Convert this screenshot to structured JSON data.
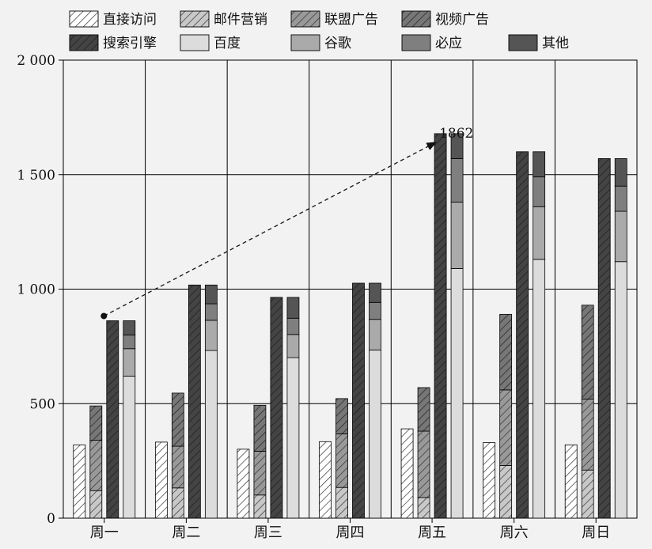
{
  "chart_data": {
    "type": "bar",
    "categories": [
      "周一",
      "周二",
      "周三",
      "周四",
      "周五",
      "周六",
      "周日"
    ],
    "ylim": [
      0,
      2000
    ],
    "yticks": [
      0,
      500,
      1000,
      1500,
      2000
    ],
    "ytick_labels": [
      "0",
      "500",
      "1 000",
      "1 500",
      "2 000"
    ],
    "grid": true,
    "legend_position": "top",
    "groups": [
      {
        "id": "direct",
        "series": [
          {
            "name": "直接访问",
            "values": [
              320,
              332,
              301,
              334,
              390,
              330,
              320
            ],
            "color": "#ffffff",
            "pattern": "hatch-light"
          }
        ]
      },
      {
        "id": "ads",
        "series": [
          {
            "name": "邮件营销",
            "values": [
              120,
              132,
              101,
              134,
              90,
              230,
              210
            ],
            "color": "#c8c8c8",
            "pattern": "hatch-medium"
          },
          {
            "name": "联盟广告",
            "values": [
              220,
              182,
              191,
              234,
              290,
              330,
              310
            ],
            "color": "#999999",
            "pattern": "hatch-medium"
          },
          {
            "name": "视频广告",
            "values": [
              150,
              232,
              201,
              154,
              190,
              330,
              410
            ],
            "color": "#777777",
            "pattern": "hatch-dark"
          }
        ]
      },
      {
        "id": "search-total",
        "series": [
          {
            "name": "搜索引擎",
            "values": [
              862,
              1018,
              964,
              1026,
              1679,
              1600,
              1570
            ],
            "color": "#444444",
            "pattern": "hatch-darkest"
          }
        ]
      },
      {
        "id": "search-engines",
        "series": [
          {
            "name": "百度",
            "values": [
              620,
              732,
              701,
              734,
              1090,
              1130,
              1120
            ],
            "color": "#dcdcdc",
            "pattern": "solid"
          },
          {
            "name": "谷歌",
            "values": [
              120,
              132,
              101,
              134,
              290,
              230,
              220
            ],
            "color": "#aaaaaa",
            "pattern": "solid"
          },
          {
            "name": "必应",
            "values": [
              60,
              72,
              71,
              74,
              190,
              130,
              110
            ],
            "color": "#7f7f7f",
            "pattern": "solid"
          },
          {
            "name": "其他",
            "values": [
              62,
              82,
              91,
              84,
              109,
              110,
              120
            ],
            "color": "#555555",
            "pattern": "solid"
          }
        ]
      }
    ],
    "annotation": {
      "label": "1862",
      "from": {
        "category": "周一",
        "y": 862
      },
      "to": {
        "category": "周五",
        "y": 1662
      }
    }
  }
}
